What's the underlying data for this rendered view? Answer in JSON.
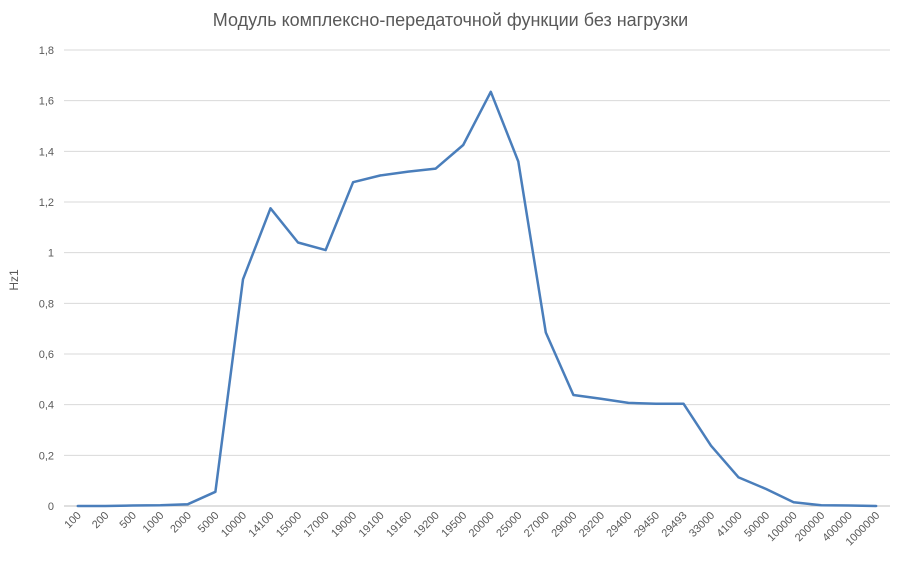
{
  "chart_data": {
    "type": "line",
    "title": "Модуль комплексно-передаточной функции без нагрузки",
    "xlabel": "",
    "ylabel": "Hz1",
    "ylim": [
      0,
      1.8
    ],
    "yticks": [
      "0",
      "0,2",
      "0,4",
      "0,6",
      "0,8",
      "1",
      "1,2",
      "1,4",
      "1,6",
      "1,8"
    ],
    "grid": true,
    "legend": "none",
    "line_color": "#4a7ebb",
    "categories": [
      "100",
      "200",
      "500",
      "1000",
      "2000",
      "5000",
      "10000",
      "14100",
      "15000",
      "17000",
      "19000",
      "19100",
      "19160",
      "19200",
      "19500",
      "20000",
      "25000",
      "27000",
      "29000",
      "29200",
      "29400",
      "29450",
      "29493",
      "33000",
      "41000",
      "50000",
      "100000",
      "200000",
      "400000",
      "1000000"
    ],
    "series": [
      {
        "name": "",
        "values": [
          0,
          0,
          0.002,
          0.003,
          0.007,
          0.056,
          0.895,
          1.175,
          1.04,
          1.01,
          1.278,
          1.305,
          1.32,
          1.332,
          1.425,
          1.635,
          1.36,
          0.685,
          0.438,
          0.423,
          0.407,
          0.404,
          0.404,
          0.238,
          0.113,
          0.067,
          0.015,
          0.003,
          0.002,
          0
        ]
      }
    ]
  }
}
